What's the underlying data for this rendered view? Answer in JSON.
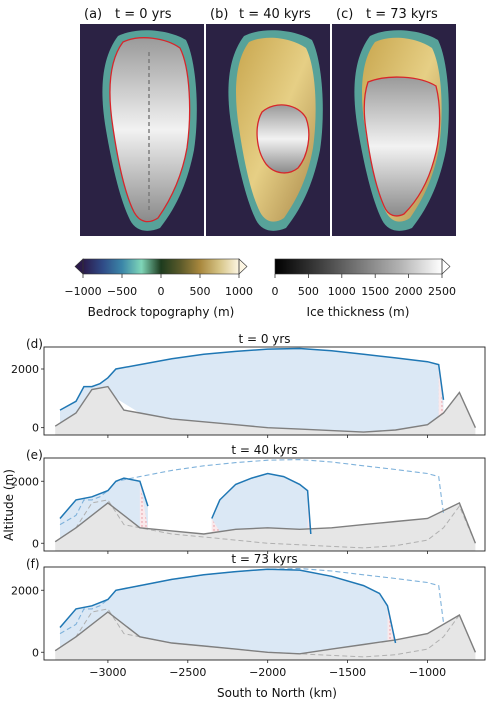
{
  "maps": {
    "panels": [
      {
        "label": "(a)",
        "time": "t = 0 yrs"
      },
      {
        "label": "(b)",
        "time": "t = 40 kyrs"
      },
      {
        "label": "(c)",
        "time": "t = 73 kyrs"
      }
    ],
    "ice_outline_color": "#d7262b",
    "ocean_color": "#2b2244"
  },
  "colorbars": {
    "bedrock": {
      "label": "Bedrock topography (m)",
      "ticks": [
        "−1000",
        "−500",
        "0",
        "500",
        "1000"
      ],
      "tick_values": [
        -1000,
        -500,
        0,
        500,
        1000
      ],
      "range": [
        -1000,
        1000
      ],
      "stops": [
        "#2b1a4a",
        "#2f4a86",
        "#3b86a8",
        "#7fd6b8",
        "#1d3b1e",
        "#5b5a2a",
        "#a8873d",
        "#d6c486",
        "#fdf6e3"
      ]
    },
    "ice": {
      "label": "Ice thickness (m)",
      "ticks": [
        "0",
        "500",
        "1000",
        "1500",
        "2000",
        "2500"
      ],
      "tick_values": [
        0,
        500,
        1000,
        1500,
        2000,
        2500
      ],
      "range": [
        0,
        2500
      ],
      "stops": [
        "#000000",
        "#3a3a3a",
        "#777777",
        "#b3b3b3",
        "#ffffff"
      ]
    }
  },
  "chart_data": [
    {
      "type": "area",
      "panel": "(d)",
      "title": "t = 0 yrs",
      "xlim": [
        -3400,
        -640
      ],
      "ylim": [
        -250,
        2750
      ],
      "yticks": [
        0,
        2000
      ],
      "show_dashed_reference": false,
      "surface": {
        "x": [
          -3300,
          -3200,
          -3150,
          -3100,
          -3050,
          -3000,
          -2950,
          -2800,
          -2600,
          -2400,
          -2200,
          -2000,
          -1800,
          -1600,
          -1400,
          -1200,
          -1000,
          -930,
          -900
        ],
        "y": [
          600,
          900,
          1400,
          1400,
          1500,
          1700,
          2000,
          2150,
          2350,
          2500,
          2600,
          2680,
          2700,
          2620,
          2500,
          2380,
          2250,
          2150,
          950
        ]
      },
      "bedrock": {
        "x": [
          -3330,
          -3200,
          -3100,
          -3000,
          -2900,
          -2800,
          -2600,
          -2400,
          -2200,
          -2000,
          -1800,
          -1600,
          -1400,
          -1200,
          -1000,
          -900,
          -800,
          -700
        ],
        "y": [
          50,
          500,
          1300,
          1400,
          600,
          500,
          300,
          200,
          100,
          0,
          -50,
          -100,
          -150,
          -80,
          100,
          500,
          1200,
          0
        ]
      }
    },
    {
      "type": "area",
      "panel": "(e)",
      "title": "t = 40 kyrs",
      "xlim": [
        -3400,
        -640
      ],
      "ylim": [
        -250,
        2750
      ],
      "yticks": [
        0,
        2000
      ],
      "show_dashed_reference": true,
      "surface": {
        "x": [
          -3300,
          -3200,
          -3100,
          -3000,
          -2950,
          -2900,
          -2800,
          -2750
        ],
        "y": [
          800,
          1400,
          1500,
          1700,
          2000,
          2100,
          2000,
          1200
        ],
        "x2": [
          -2350,
          -2300,
          -2200,
          -2100,
          -2000,
          -1900,
          -1800,
          -1750,
          -1730
        ],
        "y2": [
          800,
          1400,
          1900,
          2100,
          2250,
          2150,
          1900,
          1700,
          300
        ]
      },
      "bedrock": {
        "x": [
          -3330,
          -3200,
          -3000,
          -2800,
          -2600,
          -2400,
          -2200,
          -2000,
          -1800,
          -1600,
          -1400,
          -1200,
          -1000,
          -800,
          -700
        ],
        "y": [
          50,
          500,
          1300,
          500,
          400,
          300,
          450,
          500,
          450,
          500,
          600,
          700,
          800,
          1300,
          0
        ]
      }
    },
    {
      "type": "area",
      "panel": "(f)",
      "title": "t = 73 kyrs",
      "xlim": [
        -3400,
        -640
      ],
      "ylim": [
        -250,
        2750
      ],
      "yticks": [
        0,
        2000
      ],
      "show_dashed_reference": true,
      "surface": {
        "x": [
          -3300,
          -3200,
          -3100,
          -3000,
          -2950,
          -2800,
          -2600,
          -2400,
          -2200,
          -2000,
          -1800,
          -1600,
          -1400,
          -1300,
          -1250,
          -1200
        ],
        "y": [
          800,
          1400,
          1500,
          1700,
          2000,
          2150,
          2350,
          2500,
          2600,
          2680,
          2650,
          2450,
          2150,
          1900,
          1500,
          300
        ]
      },
      "bedrock": {
        "x": [
          -3330,
          -3200,
          -3000,
          -2800,
          -2600,
          -2400,
          -2200,
          -2000,
          -1800,
          -1600,
          -1400,
          -1200,
          -1000,
          -800,
          -700
        ],
        "y": [
          50,
          500,
          1300,
          500,
          300,
          200,
          100,
          0,
          -50,
          100,
          250,
          400,
          600,
          1200,
          0
        ]
      }
    }
  ],
  "axes": {
    "ylabel": "Altitude (m)",
    "xlabel": "South to North (km)",
    "xticks": [
      "−3000",
      "−2500",
      "−2000",
      "−1500",
      "−1000"
    ],
    "xtick_values": [
      -3000,
      -2500,
      -2000,
      -1500,
      -1000
    ],
    "colors": {
      "surface": "#1f77b4",
      "reference": "#7fb2db",
      "bedrock": "#7f7f7f",
      "ice_fill": "#dbe8f5",
      "ground_fill": "#e6e6e6",
      "floating_fill": "#f6d9dc"
    }
  }
}
